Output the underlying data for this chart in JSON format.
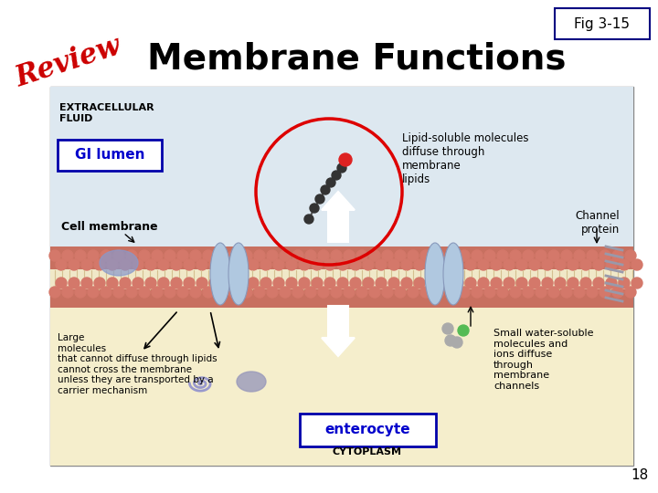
{
  "title": "Membrane Functions",
  "review_text": "Review",
  "fig_label": "Fig 3-15",
  "page_number": "18",
  "gi_lumen_text": "GI lumen",
  "enterocyte_text": "enterocyte",
  "cytoplasm_text": "CYTOPLASM",
  "extracellular_text": "EXTRACELLULAR\nFLUID",
  "cell_membrane_text": "Cell membrane",
  "channel_protein_text": "Channel\nprotein",
  "lipid_text": "Lipid-soluble molecules\ndiffuse through\nmembrane\nlipids",
  "large_mol_text": "Large\nmolecules\nthat cannot diffuse through lipids\ncannot cross the membrane\nunless they are transported by a\ncarrier mechanism",
  "small_mol_text": "Small water-soluble\nmolecules and\nions diffuse\nthrough\nmembrane\nchannels",
  "title_fontsize": 28,
  "review_fontsize": 22,
  "fig_label_fontsize": 11,
  "page_fontsize": 11,
  "slide_bg": "#ffffff",
  "review_color": "#cc0000",
  "title_color": "#000000",
  "fig_box_color": "#000080",
  "gi_lumen_color": "#0000cc",
  "enterocyte_color": "#0000cc",
  "diagram_bg": "#ffffff",
  "diagram_border": "#aaaaaa",
  "extracell_bg": "#dde8f0",
  "cytoplasm_bg": "#f5eecc",
  "membrane_outer_color": "#c87060",
  "membrane_mid_color": "#f5ead5",
  "channel_color": "#b0c8e0",
  "red_circle_color": "#dd0000"
}
